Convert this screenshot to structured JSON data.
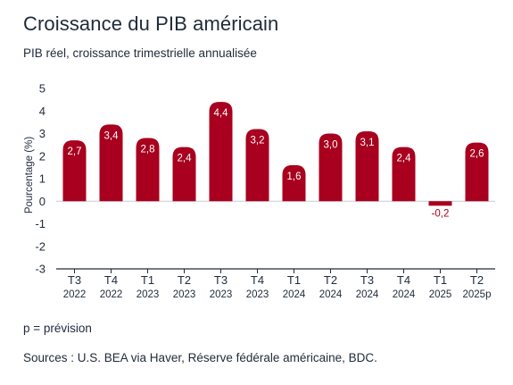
{
  "title": "Croissance du PIB américain",
  "subtitle": "PIB réel, croissance trimestrielle annualisée",
  "footnote": "p = prévision",
  "sources": "Sources : U.S. BEA via Haver, Réserve fédérale américaine, BDC.",
  "colors": {
    "bar": "#a8001e",
    "negative_label": "#a8001e",
    "text": "#1f2a3a",
    "axis": "#1f2a3a"
  },
  "chart_data": {
    "type": "bar",
    "title": "Croissance du PIB américain",
    "subtitle": "PIB réel, croissance trimestrielle annualisée",
    "xlabel": "",
    "ylabel": "Pourcentage (%)",
    "ylim": [
      -3,
      5
    ],
    "yticks": [
      "5",
      "4",
      "3",
      "2",
      "1",
      "0",
      "-1",
      "-2",
      "-3"
    ],
    "categories": [
      {
        "quarter": "T3",
        "year": "2022"
      },
      {
        "quarter": "T4",
        "year": "2022"
      },
      {
        "quarter": "T1",
        "year": "2023"
      },
      {
        "quarter": "T2",
        "year": "2023"
      },
      {
        "quarter": "T3",
        "year": "2023"
      },
      {
        "quarter": "T4",
        "year": "2023"
      },
      {
        "quarter": "T1",
        "year": "2024"
      },
      {
        "quarter": "T2",
        "year": "2024"
      },
      {
        "quarter": "T3",
        "year": "2024"
      },
      {
        "quarter": "T4",
        "year": "2024"
      },
      {
        "quarter": "T1",
        "year": "2025"
      },
      {
        "quarter": "T2",
        "year": "2025p"
      }
    ],
    "values": [
      2.7,
      3.4,
      2.8,
      2.4,
      4.4,
      3.2,
      1.6,
      3.0,
      3.1,
      2.4,
      -0.2,
      2.6
    ],
    "value_labels": [
      "2,7",
      "3,4",
      "2,8",
      "2,4",
      "4,4",
      "3,2",
      "1,6",
      "3,0",
      "3,1",
      "2,4",
      "-0,2",
      "2,6"
    ],
    "grid": false,
    "legend": "none"
  }
}
